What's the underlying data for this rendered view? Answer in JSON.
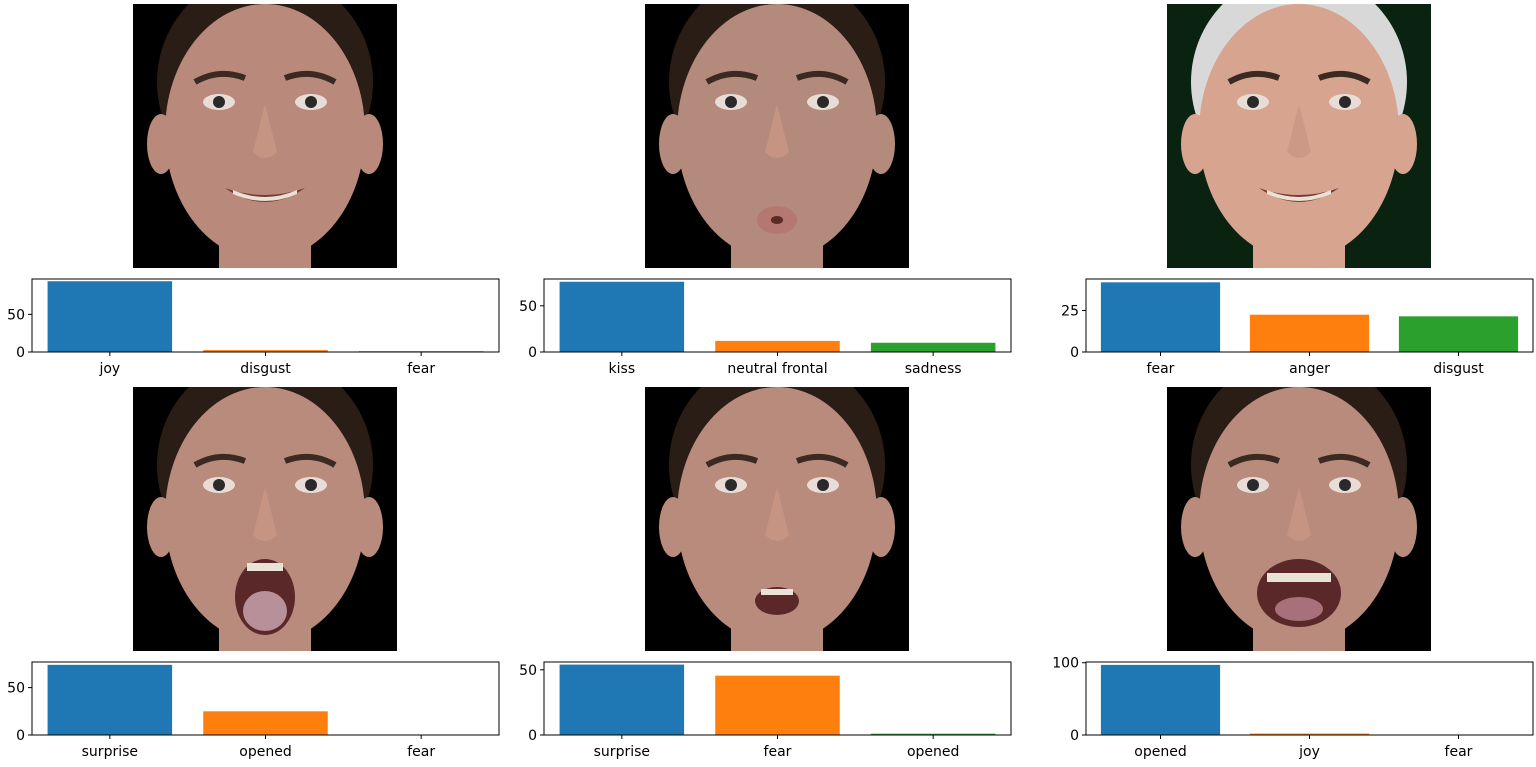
{
  "colors": [
    "#1f77b4",
    "#ff7f0e",
    "#2ca02c"
  ],
  "chart_data": [
    {
      "type": "bar",
      "categories": [
        "joy",
        "disgust",
        "fear"
      ],
      "values": [
        94,
        2.5,
        1
      ],
      "yticks": [
        0,
        50
      ],
      "ylim": [
        0,
        97
      ],
      "face": {
        "skin": "#b98a7c",
        "hair": "#2a1d16",
        "bg": "#000000",
        "expression": "smile"
      }
    },
    {
      "type": "bar",
      "categories": [
        "kiss",
        "neutral frontal",
        "sadness"
      ],
      "values": [
        76,
        12,
        10
      ],
      "yticks": [
        0,
        50
      ],
      "ylim": [
        0,
        79
      ],
      "face": {
        "skin": "#b48a7c",
        "hair": "#2a1d16",
        "bg": "#000000",
        "expression": "kiss"
      }
    },
    {
      "type": "bar",
      "categories": [
        "fear",
        "anger",
        "disgust"
      ],
      "values": [
        42,
        22.5,
        21.5
      ],
      "yticks": [
        0,
        25
      ],
      "ylim": [
        0,
        44
      ],
      "face": {
        "skin": "#d7a58f",
        "hair": "#d8d8d8",
        "bg": "#0a2210",
        "expression": "smile-old"
      }
    },
    {
      "type": "bar",
      "categories": [
        "surprise",
        "opened",
        "fear"
      ],
      "values": [
        74,
        25,
        0.3
      ],
      "yticks": [
        0,
        50
      ],
      "ylim": [
        0,
        77
      ],
      "face": {
        "skin": "#b88b7d",
        "hair": "#2a1d16",
        "bg": "#000000",
        "expression": "open-wide"
      }
    },
    {
      "type": "bar",
      "categories": [
        "surprise",
        "fear",
        "opened"
      ],
      "values": [
        54,
        45.5,
        1
      ],
      "yticks": [
        0,
        50
      ],
      "ylim": [
        0,
        56
      ],
      "face": {
        "skin": "#b88b7d",
        "hair": "#2a1d16",
        "bg": "#000000",
        "expression": "open-small"
      }
    },
    {
      "type": "bar",
      "categories": [
        "opened",
        "joy",
        "fear"
      ],
      "values": [
        97,
        2,
        0.5
      ],
      "yticks": [
        0,
        100
      ],
      "ylim": [
        0,
        101
      ],
      "face": {
        "skin": "#b88b7d",
        "hair": "#2a1d16",
        "bg": "#000000",
        "expression": "open-smile"
      }
    }
  ]
}
